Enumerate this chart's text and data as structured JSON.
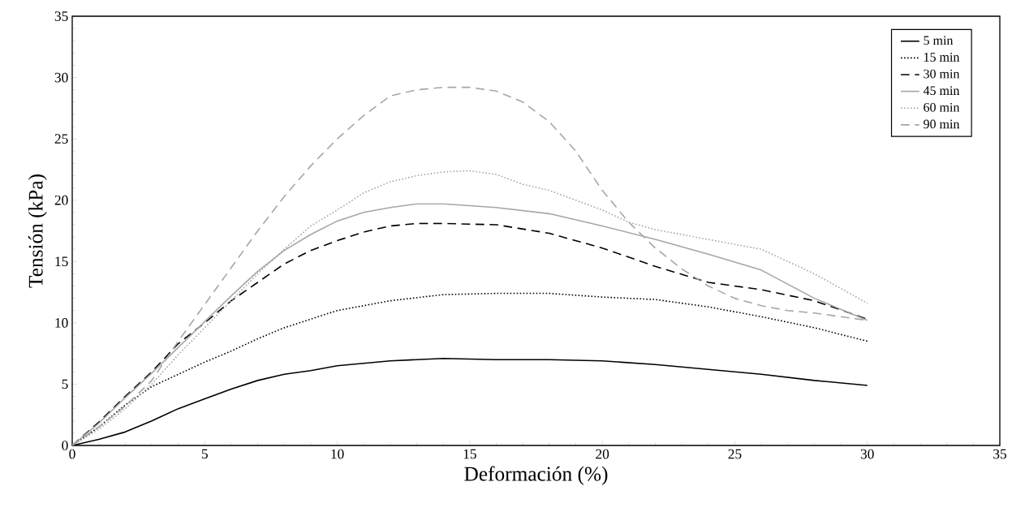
{
  "chart_data": {
    "type": "line",
    "xlabel": "Deformación (%)",
    "ylabel": "Tensión  (kPa)",
    "xlim": [
      0,
      35
    ],
    "ylim": [
      0,
      35
    ],
    "xticks": [
      0,
      5,
      10,
      15,
      20,
      25,
      30,
      35
    ],
    "yticks": [
      0,
      5,
      10,
      15,
      20,
      25,
      30,
      35
    ],
    "grid": false,
    "legend": "top right",
    "marker": "none",
    "series": [
      {
        "name": "5 min",
        "color": "#000000",
        "line_style": "solid",
        "x": [
          0,
          1,
          2,
          3,
          4,
          5,
          6,
          7,
          8,
          9,
          10,
          12,
          14,
          16,
          18,
          20,
          22,
          24,
          26,
          28,
          30
        ],
        "values": [
          0,
          0.5,
          1.1,
          2,
          3,
          3.8,
          4.6,
          5.3,
          5.8,
          6.1,
          6.5,
          6.9,
          7.1,
          7.0,
          7.0,
          6.9,
          6.6,
          6.2,
          5.8,
          5.3,
          4.9
        ]
      },
      {
        "name": "15 min",
        "color": "#000000",
        "line_style": "dotted",
        "x": [
          0,
          1,
          2,
          3,
          4,
          5,
          6,
          7,
          8,
          9,
          10,
          12,
          14,
          16,
          18,
          20,
          22,
          24,
          26,
          28,
          30
        ],
        "values": [
          0,
          1.5,
          3.3,
          4.8,
          5.8,
          6.8,
          7.7,
          8.7,
          9.6,
          10.3,
          11.0,
          11.8,
          12.3,
          12.4,
          12.4,
          12.1,
          11.9,
          11.3,
          10.5,
          9.6,
          8.5
        ]
      },
      {
        "name": "30 min",
        "color": "#000000",
        "line_style": "dashed",
        "x": [
          0,
          1,
          2,
          3,
          4,
          5,
          6,
          7,
          8,
          9,
          10,
          11,
          12,
          13,
          14,
          16,
          18,
          20,
          22,
          24,
          26,
          28,
          30
        ],
        "values": [
          0,
          1.9,
          4,
          6,
          8.3,
          10,
          11.8,
          13.3,
          14.8,
          15.9,
          16.7,
          17.4,
          17.9,
          18.1,
          18.1,
          18.0,
          17.3,
          16.1,
          14.6,
          13.3,
          12.7,
          11.8,
          10.3
        ]
      },
      {
        "name": "45 min",
        "color": "#a6a6a6",
        "line_style": "solid",
        "x": [
          0,
          1,
          2,
          3,
          4,
          5,
          6,
          7,
          8,
          9,
          10,
          11,
          12,
          13,
          14,
          16,
          18,
          20,
          22,
          24,
          26,
          28,
          30
        ],
        "values": [
          0,
          1.8,
          3.9,
          5.9,
          8,
          10.1,
          12.2,
          14.2,
          15.9,
          17.2,
          18.3,
          19.0,
          19.4,
          19.7,
          19.7,
          19.4,
          18.9,
          17.9,
          16.8,
          15.6,
          14.3,
          12.0,
          10.2
        ]
      },
      {
        "name": "60 min",
        "color": "#a6a6a6",
        "line_style": "dotted",
        "x": [
          0,
          1,
          2,
          3,
          4,
          5,
          6,
          7,
          8,
          9,
          10,
          11,
          12,
          13,
          14,
          15,
          16,
          17,
          18,
          20,
          21,
          22,
          24,
          26,
          28,
          30
        ],
        "values": [
          0,
          1.3,
          3,
          5,
          7.4,
          9.6,
          11.8,
          14,
          16,
          17.9,
          19.2,
          20.6,
          21.5,
          22,
          22.3,
          22.4,
          22.1,
          21.3,
          20.8,
          19.2,
          18.2,
          17.6,
          16.8,
          16,
          14,
          11.6
        ]
      },
      {
        "name": "90 min",
        "color": "#a6a6a6",
        "line_style": "dashed",
        "x": [
          0,
          1,
          2,
          3,
          4,
          5,
          6,
          7,
          8,
          9,
          10,
          11,
          12,
          13,
          14,
          15,
          16,
          17,
          18,
          19,
          20,
          21,
          22,
          23,
          24,
          25,
          26,
          27,
          28,
          29,
          30
        ],
        "values": [
          0,
          1.5,
          3.2,
          5.3,
          8.5,
          11.5,
          14.5,
          17.5,
          20.3,
          22.8,
          25,
          26.9,
          28.5,
          29,
          29.2,
          29.2,
          28.9,
          28,
          26.4,
          24,
          20.8,
          18.2,
          16.1,
          14.4,
          13.0,
          12.0,
          11.4,
          11.0,
          10.8,
          10.5,
          10.2
        ]
      }
    ]
  }
}
